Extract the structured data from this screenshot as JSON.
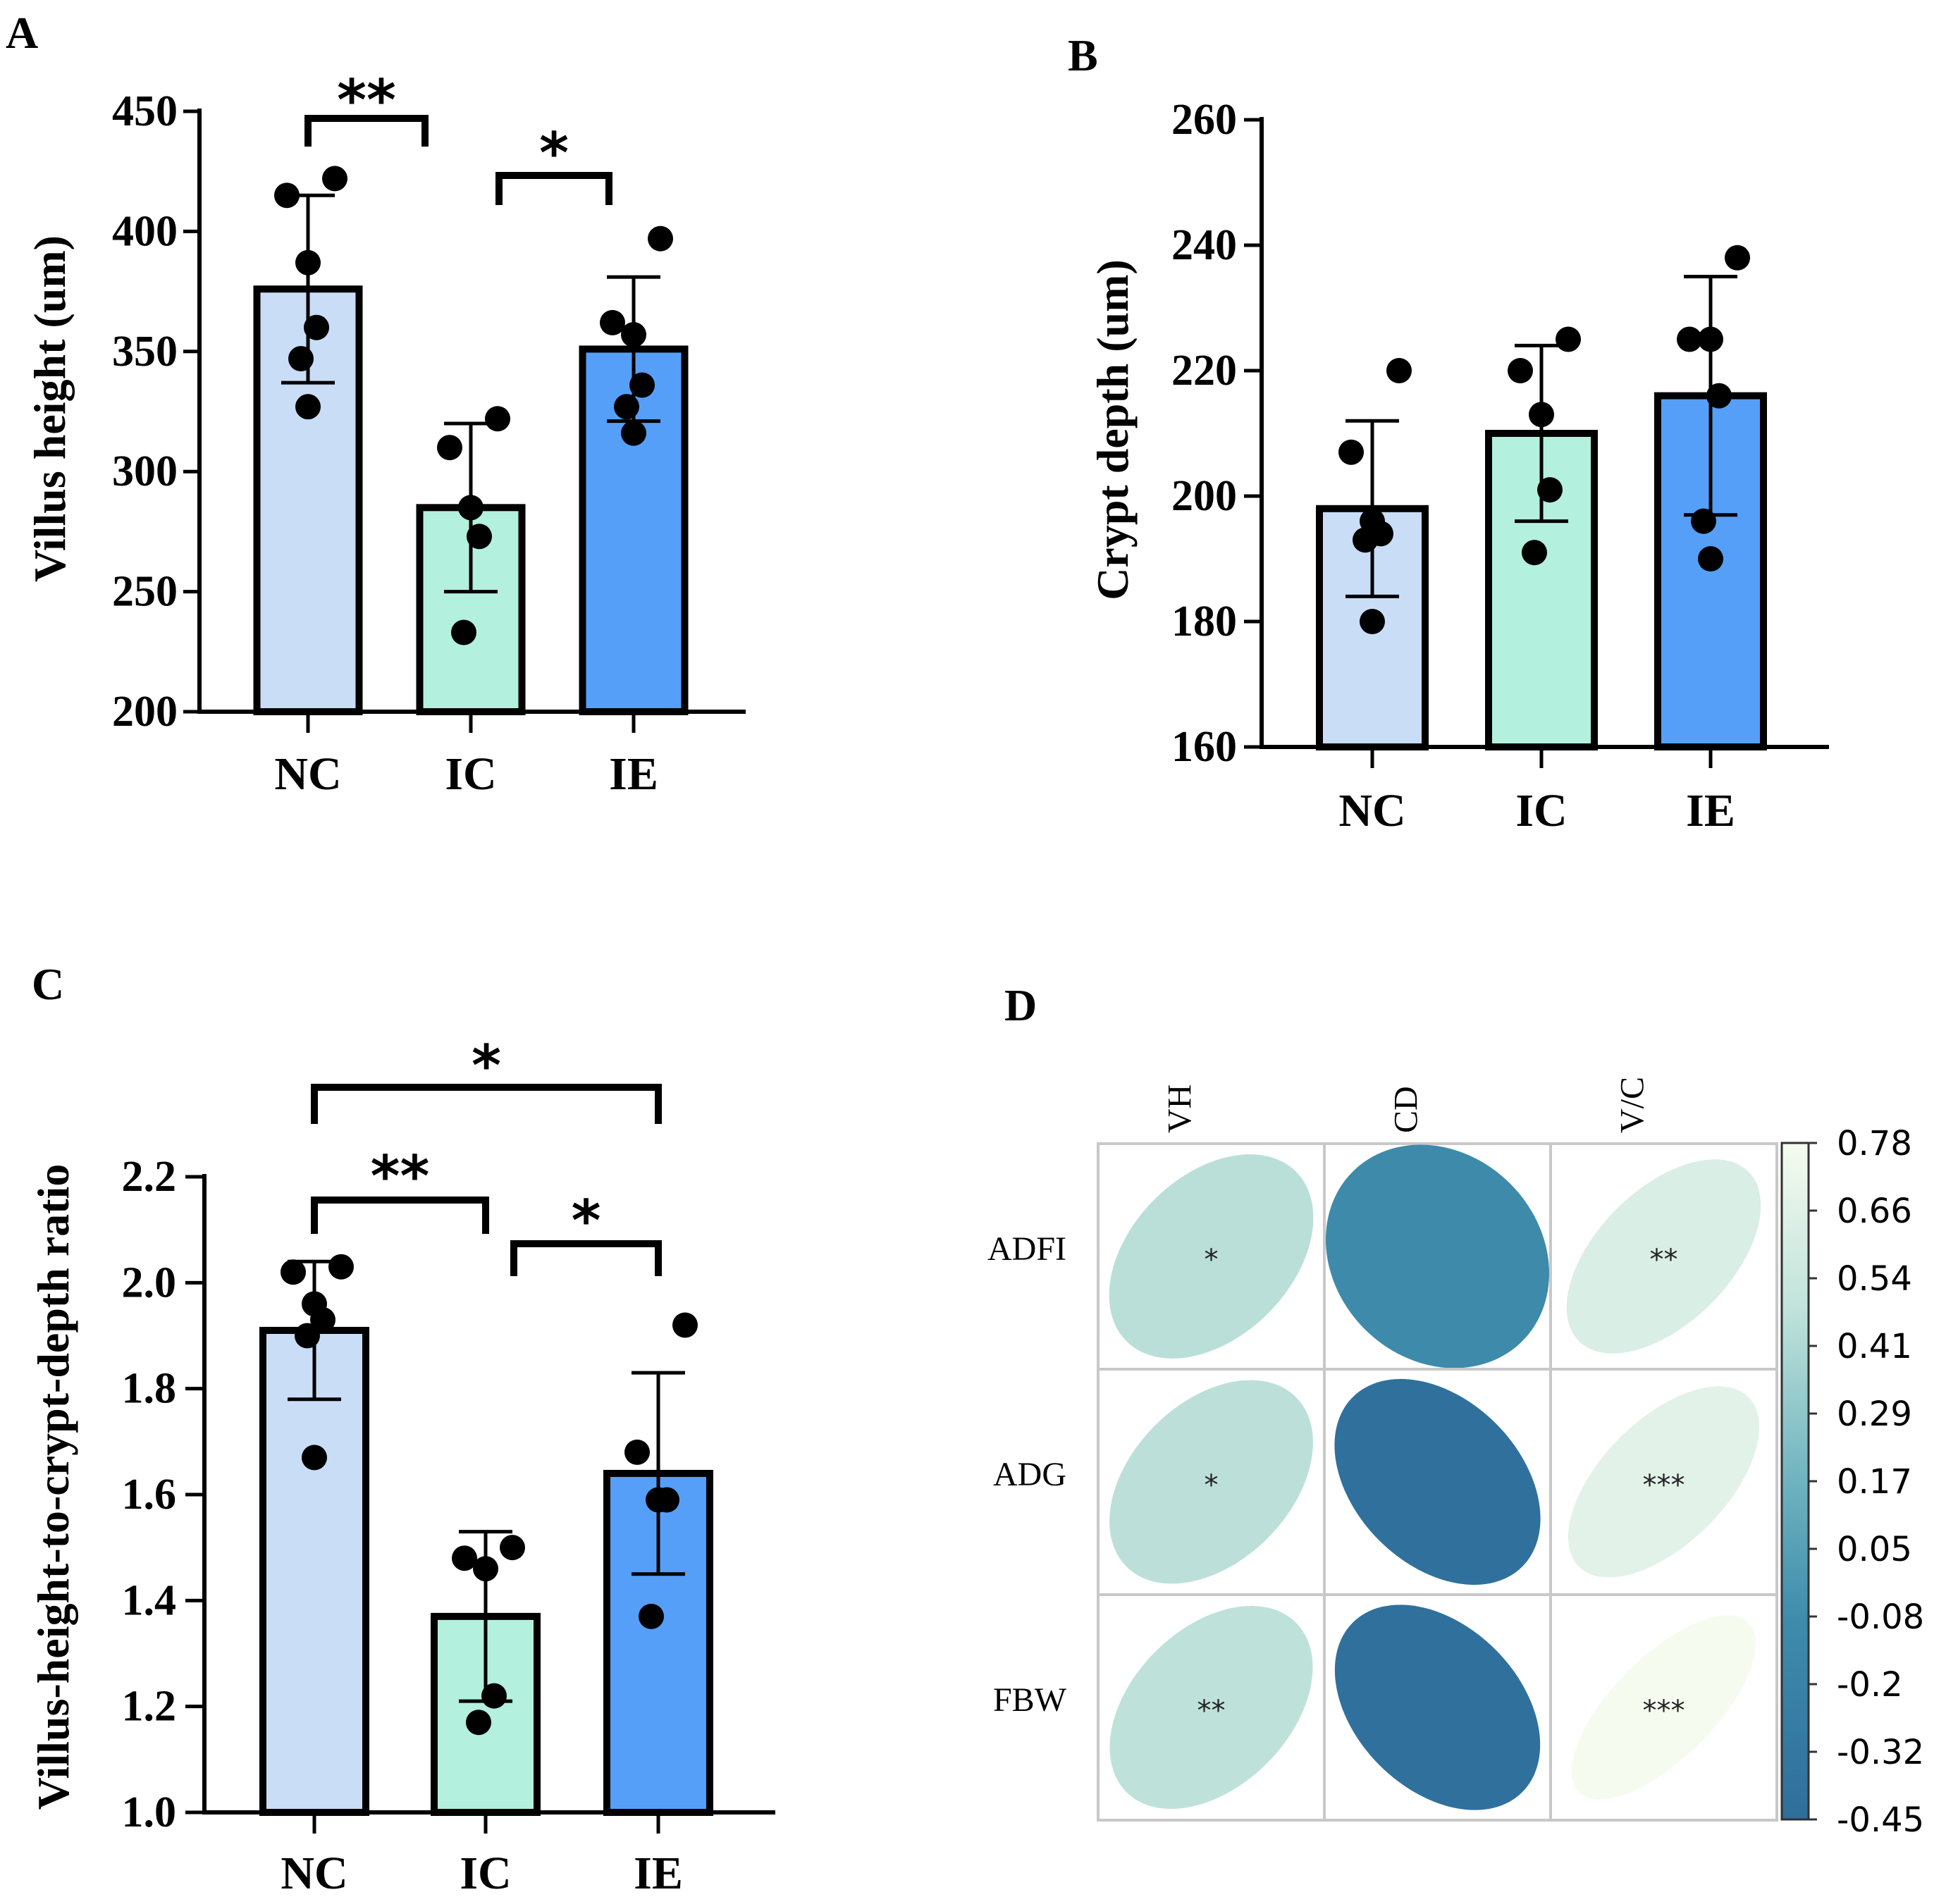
{
  "chart_data": [
    {
      "panel": "A",
      "type": "bar",
      "categories": [
        "NC",
        "IC",
        "IE"
      ],
      "values": [
        376,
        285,
        351
      ],
      "sd": [
        39,
        35,
        30
      ],
      "points": [
        [
          422,
          415,
          387,
          360,
          347,
          327
        ],
        [
          322,
          310,
          285,
          273,
          233
        ],
        [
          397,
          362,
          357,
          336,
          327,
          316
        ]
      ],
      "colors": [
        "#c9ddf6",
        "#b3f0de",
        "#559ff9"
      ],
      "ylabel": "Villus height (um)",
      "ylim": [
        200,
        450
      ],
      "yticks": [
        200,
        250,
        300,
        350,
        400,
        450
      ],
      "significance": [
        {
          "from": 0,
          "to": 1,
          "label": "**"
        },
        {
          "from": 1,
          "to": 2,
          "label": "*"
        }
      ]
    },
    {
      "panel": "B",
      "type": "bar",
      "categories": [
        "NC",
        "IC",
        "IE"
      ],
      "values": [
        198,
        210,
        216
      ],
      "sd": [
        14,
        14,
        19
      ],
      "points": [
        [
          220,
          207,
          196,
          194,
          193,
          180
        ],
        [
          225,
          220,
          213,
          201,
          191
        ],
        [
          238,
          225,
          225,
          216,
          196,
          190
        ]
      ],
      "colors": [
        "#c9ddf6",
        "#b3f0de",
        "#559ff9"
      ],
      "ylabel": "Crypt depth (um)",
      "ylim": [
        160,
        260
      ],
      "yticks": [
        160,
        180,
        200,
        220,
        240,
        260
      ],
      "significance": []
    },
    {
      "panel": "C",
      "type": "bar",
      "categories": [
        "NC",
        "IC",
        "IE"
      ],
      "values": [
        1.91,
        1.37,
        1.64
      ],
      "sd": [
        0.13,
        0.16,
        0.19
      ],
      "points": [
        [
          2.03,
          2.02,
          1.96,
          1.93,
          1.9,
          1.67
        ],
        [
          1.5,
          1.48,
          1.46,
          1.22,
          1.17
        ],
        [
          1.92,
          1.68,
          1.59,
          1.59,
          1.37
        ]
      ],
      "colors": [
        "#c9ddf6",
        "#b3f0de",
        "#559ff9"
      ],
      "ylabel": "Villus-height-to-crypt-depth ratio",
      "ylim": [
        1.0,
        2.2
      ],
      "yticks": [
        "1.0",
        "1.2",
        "1.4",
        "1.6",
        "1.8",
        "2.0",
        "2.2"
      ],
      "significance": [
        {
          "from": 0,
          "to": 2,
          "label": "*"
        },
        {
          "from": 0,
          "to": 1,
          "label": "**"
        },
        {
          "from": 1,
          "to": 2,
          "label": "*"
        }
      ]
    },
    {
      "panel": "D",
      "type": "heatmap",
      "style": "correlation-ellipse",
      "columns": [
        "VH",
        "CD",
        "V/C"
      ],
      "rows": [
        "ADFI",
        "ADG",
        "FBW"
      ],
      "values": [
        [
          0.45,
          -0.1,
          0.62
        ],
        [
          0.46,
          -0.42,
          0.67
        ],
        [
          0.47,
          -0.43,
          0.78
        ]
      ],
      "stars": [
        [
          "*",
          "",
          "**"
        ],
        [
          "*",
          "",
          "***"
        ],
        [
          "**",
          "",
          "***"
        ]
      ],
      "colorbar": {
        "ticks": [
          "0.78",
          "0.66",
          "0.54",
          "0.41",
          "0.29",
          "0.17",
          "0.05",
          "-0.08",
          "-0.2",
          "-0.32",
          "-0.45"
        ],
        "range": [
          -0.45,
          0.78
        ]
      }
    }
  ]
}
